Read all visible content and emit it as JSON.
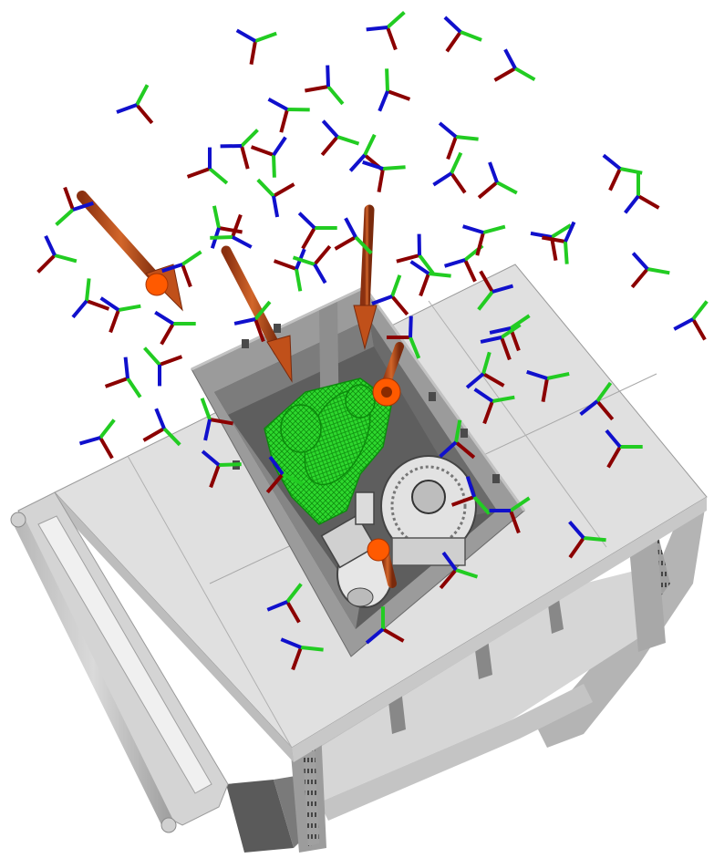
{
  "scene": {
    "background": "#ffffff",
    "colors": {
      "axis_x": "#8b0000",
      "axis_y": "#22cc22",
      "axis_z": "#1010cc",
      "approach_arrow": "#c0501a",
      "arrow_tip": "#ff5a00",
      "target_part_mesh": "#22dd22",
      "shelf": "#d9d9d9",
      "shelf_dark": "#9a9a9a",
      "bin": "#7a7a7a"
    },
    "icons": {
      "grasp_frame": "triad-axes-icon",
      "approach": "arrow-icon",
      "target_part": "starter-motor-mesh-icon",
      "other_part": "alternator-part-icon"
    },
    "approach_arrow_count": 4,
    "pick_marker_count": 2
  }
}
